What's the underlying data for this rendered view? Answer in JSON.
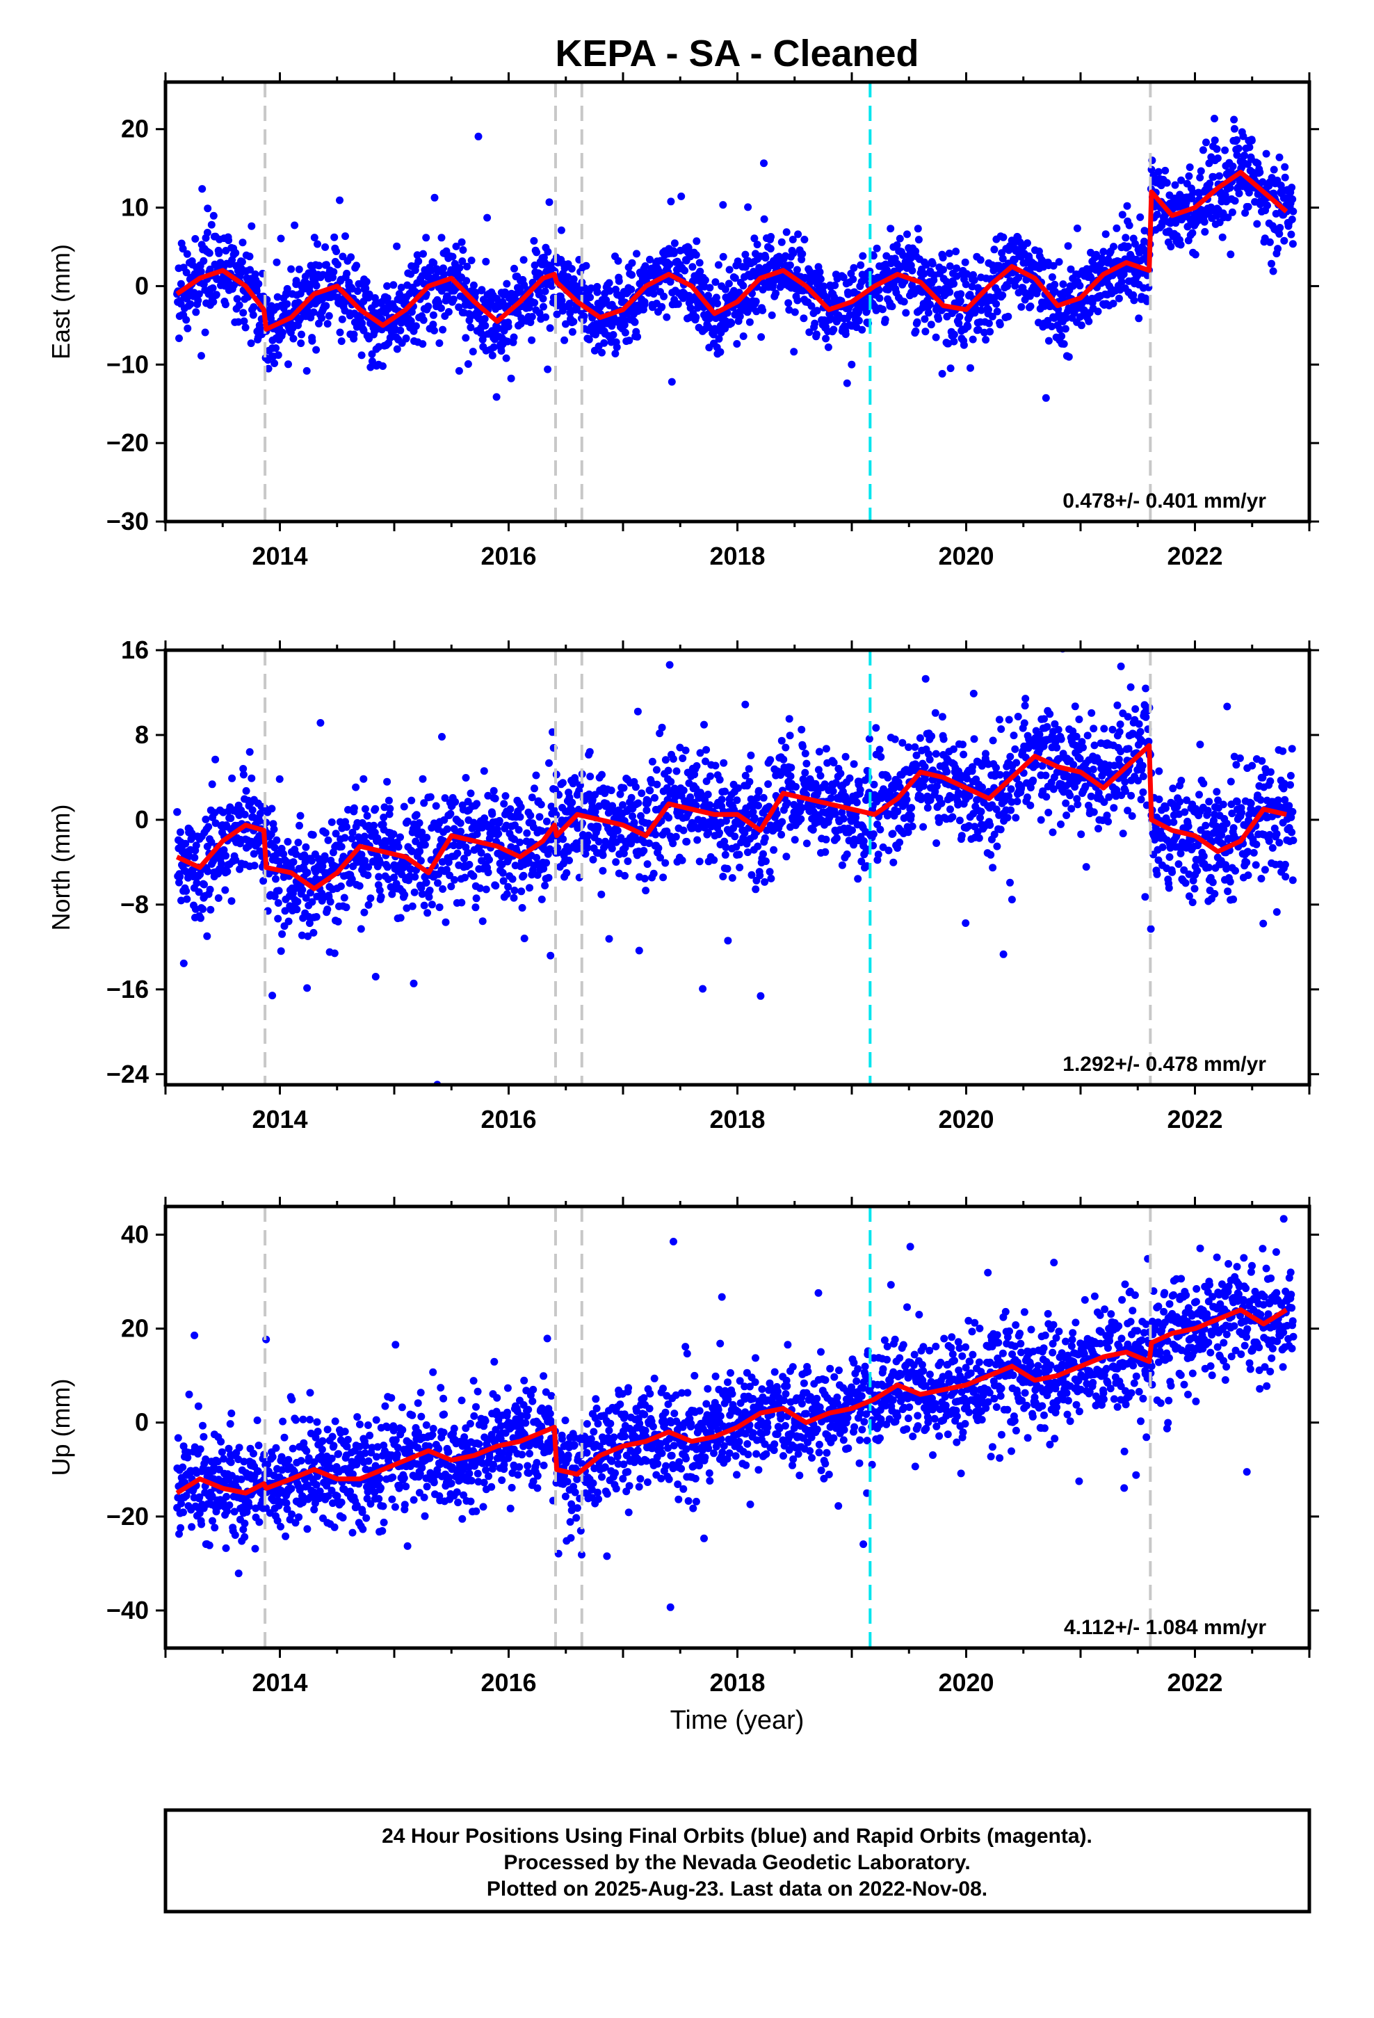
{
  "title": "KEPA  - SA - Cleaned",
  "xlabel": "Time (year)",
  "footer": {
    "line1": "24 Hour Positions Using Final Orbits (blue) and Rapid Orbits (magenta).",
    "line2": "Processed by the Nevada Geodetic Laboratory.",
    "line3": "Plotted on 2025-Aug-23. Last data on 2022-Nov-08."
  },
  "colors": {
    "data": "#0000ff",
    "model": "#ff0000",
    "equipment_change": "#c8c8c8",
    "earthquake": "#00e5ee"
  },
  "chart_data": [
    {
      "type": "scatter",
      "panel": "east",
      "ylabel": "East (mm)",
      "xlim": [
        2013.0,
        2023.0
      ],
      "ylim": [
        -30,
        26
      ],
      "xticks": [
        2014,
        2016,
        2018,
        2020,
        2022
      ],
      "yticks": [
        -30,
        -20,
        -10,
        0,
        10,
        20
      ],
      "ytick_labels": [
        "−30",
        "−20",
        "−10",
        "0",
        "10",
        "20"
      ],
      "rate_label": "0.478+/- 0.401 mm/yr",
      "equipment_changes": [
        2013.87,
        2016.41,
        2016.64,
        2021.61
      ],
      "earthquakes": [
        2019.16
      ],
      "model": {
        "x": [
          2013.1,
          2013.3,
          2013.5,
          2013.7,
          2013.86,
          2013.88,
          2014.1,
          2014.3,
          2014.5,
          2014.7,
          2014.9,
          2015.1,
          2015.3,
          2015.5,
          2015.7,
          2015.9,
          2016.1,
          2016.3,
          2016.4,
          2016.42,
          2016.6,
          2016.8,
          2017.0,
          2017.2,
          2017.4,
          2017.6,
          2017.8,
          2018.0,
          2018.2,
          2018.4,
          2018.6,
          2018.8,
          2019.0,
          2019.2,
          2019.4,
          2019.6,
          2019.8,
          2020.0,
          2020.2,
          2020.4,
          2020.6,
          2020.8,
          2021.0,
          2021.2,
          2021.4,
          2021.6,
          2021.62,
          2021.8,
          2022.0,
          2022.2,
          2022.4,
          2022.6,
          2022.8
        ],
        "y": [
          -1,
          1,
          2,
          0,
          -3,
          -5.5,
          -4,
          -1,
          0,
          -3,
          -5,
          -3,
          0,
          1,
          -2,
          -4.5,
          -2,
          1,
          1.5,
          0.5,
          -2,
          -4,
          -3,
          0,
          1.5,
          0,
          -3.5,
          -2,
          1,
          2,
          0,
          -3,
          -2,
          0,
          1.5,
          0.5,
          -2.5,
          -3,
          0,
          2.5,
          1,
          -2.5,
          -1.5,
          1.5,
          3,
          2,
          12,
          9,
          10,
          12.5,
          14.5,
          12,
          9.5
        ]
      },
      "noise_sd": 2.6
    },
    {
      "type": "scatter",
      "panel": "north",
      "ylabel": "North (mm)",
      "xlim": [
        2013.0,
        2023.0
      ],
      "ylim": [
        -25,
        16
      ],
      "xticks": [
        2014,
        2016,
        2018,
        2020,
        2022
      ],
      "yticks": [
        -24,
        -16,
        -8,
        0,
        8,
        16
      ],
      "ytick_labels": [
        "−24",
        "−16",
        "−8",
        "0",
        "8",
        "16"
      ],
      "rate_label": "1.292+/- 0.478 mm/yr",
      "equipment_changes": [
        2013.87,
        2016.41,
        2016.64,
        2021.61
      ],
      "earthquakes": [
        2019.16
      ],
      "model": {
        "x": [
          2013.1,
          2013.3,
          2013.5,
          2013.7,
          2013.86,
          2013.88,
          2014.1,
          2014.3,
          2014.5,
          2014.7,
          2014.9,
          2015.1,
          2015.3,
          2015.5,
          2015.7,
          2015.9,
          2016.1,
          2016.3,
          2016.4,
          2016.42,
          2016.6,
          2016.8,
          2017.0,
          2017.2,
          2017.4,
          2017.6,
          2017.8,
          2018.0,
          2018.2,
          2018.4,
          2018.6,
          2018.8,
          2019.0,
          2019.2,
          2019.4,
          2019.6,
          2019.8,
          2020.0,
          2020.2,
          2020.4,
          2020.6,
          2020.8,
          2021.0,
          2021.2,
          2021.4,
          2021.6,
          2021.62,
          2021.8,
          2022.0,
          2022.2,
          2022.4,
          2022.6,
          2022.8
        ],
        "y": [
          -3.5,
          -4.5,
          -2,
          -0.5,
          -1,
          -4.5,
          -5,
          -6.5,
          -5,
          -2.5,
          -3,
          -3.5,
          -5,
          -1.5,
          -2,
          -2.5,
          -3.5,
          -2,
          -0.5,
          -1.5,
          0.5,
          0,
          -0.5,
          -1.5,
          1.5,
          1,
          0.5,
          0.5,
          -1,
          2.5,
          2,
          1.5,
          1,
          0.5,
          2,
          4.5,
          4,
          3,
          2,
          4,
          6,
          5,
          4.5,
          3,
          5,
          7,
          0,
          -1,
          -1.5,
          -3,
          -2,
          1,
          0.5
        ]
      },
      "noise_sd": 2.6
    },
    {
      "type": "scatter",
      "panel": "up",
      "ylabel": "Up (mm)",
      "xlim": [
        2013.0,
        2023.0
      ],
      "ylim": [
        -48,
        46
      ],
      "xticks": [
        2014,
        2016,
        2018,
        2020,
        2022
      ],
      "yticks": [
        -40,
        -20,
        0,
        20,
        40
      ],
      "ytick_labels": [
        "−40",
        "−20",
        "0",
        "20",
        "40"
      ],
      "rate_label": "4.112+/- 1.084 mm/yr",
      "equipment_changes": [
        2013.87,
        2016.41,
        2016.64,
        2021.61
      ],
      "earthquakes": [
        2019.16
      ],
      "model": {
        "x": [
          2013.1,
          2013.3,
          2013.5,
          2013.7,
          2013.86,
          2013.88,
          2014.1,
          2014.3,
          2014.5,
          2014.7,
          2014.9,
          2015.1,
          2015.3,
          2015.5,
          2015.7,
          2015.9,
          2016.1,
          2016.3,
          2016.4,
          2016.42,
          2016.6,
          2016.8,
          2017.0,
          2017.2,
          2017.4,
          2017.6,
          2017.8,
          2018.0,
          2018.2,
          2018.4,
          2018.6,
          2018.8,
          2019.0,
          2019.2,
          2019.4,
          2019.6,
          2019.8,
          2020.0,
          2020.2,
          2020.4,
          2020.6,
          2020.8,
          2021.0,
          2021.2,
          2021.4,
          2021.6,
          2021.62,
          2021.8,
          2022.0,
          2022.2,
          2022.4,
          2022.6,
          2022.8
        ],
        "y": [
          -15,
          -12,
          -14,
          -15,
          -13,
          -14,
          -12,
          -10,
          -12,
          -12,
          -10,
          -8,
          -6,
          -8,
          -7,
          -5,
          -4,
          -2,
          -1,
          -10,
          -11,
          -7,
          -5,
          -4,
          -2,
          -4,
          -3,
          -1,
          2,
          3,
          0,
          2,
          3,
          5,
          8,
          6,
          7,
          8,
          10,
          12,
          9,
          10,
          12,
          14,
          15,
          13,
          17,
          19,
          20,
          22,
          24,
          21,
          24
        ]
      },
      "noise_sd": 5.5
    }
  ]
}
